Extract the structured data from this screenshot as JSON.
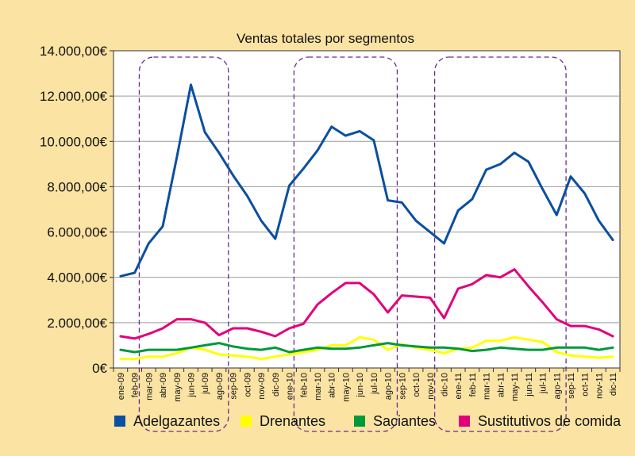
{
  "chart_data": {
    "type": "line",
    "title": "Ventas totales por segmentos",
    "xlabel": "",
    "ylabel": "",
    "ylim": [
      0,
      14000
    ],
    "y_ticks": [
      0,
      2000,
      4000,
      6000,
      8000,
      10000,
      12000,
      14000
    ],
    "y_tick_labels": [
      "0€",
      "2.000,00€",
      "4.000,00€",
      "6.000,00€",
      "8.000,00€",
      "10.000,00€",
      "12.000,00€",
      "14.000,00€"
    ],
    "grid": "horizontal",
    "legend_position": "bottom",
    "categories": [
      "ene-09",
      "feb-09",
      "mar-09",
      "abr-09",
      "may-09",
      "jun-09",
      "jul-09",
      "ago-09",
      "sep-09",
      "oct-09",
      "nov-09",
      "dic-09",
      "ene-10",
      "feb-10",
      "mar-10",
      "abr-10",
      "may-10",
      "jun-10",
      "jul-10",
      "ago-10",
      "sep-10",
      "oct-10",
      "nov-10",
      "dic-10",
      "ene-11",
      "feb-11",
      "mar-11",
      "abr-11",
      "may-11",
      "jun-11",
      "jul-11",
      "ago-11",
      "sep-11",
      "oct-11",
      "nov-11",
      "dic-11"
    ],
    "series": [
      {
        "name": "Adelgazantes",
        "color": "#0a4fa0",
        "values": [
          4050,
          4200,
          5500,
          6250,
          9300,
          12500,
          10400,
          9500,
          8500,
          7600,
          6500,
          5700,
          8050,
          8800,
          9600,
          10650,
          10250,
          10450,
          10050,
          7400,
          7300,
          6500,
          6000,
          5500,
          6950,
          7450,
          8750,
          9000,
          9500,
          9100,
          7900,
          6750,
          8450,
          7700,
          6500,
          5650
        ]
      },
      {
        "name": "Drenantes",
        "color": "#ffff00",
        "values": [
          400,
          400,
          500,
          500,
          650,
          900,
          800,
          600,
          550,
          500,
          400,
          500,
          600,
          700,
          800,
          1000,
          1000,
          1350,
          1250,
          800,
          1050,
          900,
          800,
          650,
          850,
          900,
          1200,
          1200,
          1350,
          1250,
          1150,
          700,
          550,
          500,
          450,
          500
        ]
      },
      {
        "name": "Saciantes",
        "color": "#00983a",
        "values": [
          800,
          700,
          800,
          800,
          800,
          900,
          1000,
          1100,
          950,
          850,
          800,
          900,
          700,
          800,
          900,
          850,
          850,
          900,
          1000,
          1100,
          1000,
          950,
          900,
          900,
          850,
          750,
          800,
          900,
          850,
          800,
          800,
          900,
          900,
          900,
          800,
          900
        ]
      },
      {
        "name": "Sustitutivos de comida",
        "color": "#e2007a",
        "values": [
          1400,
          1300,
          1500,
          1750,
          2150,
          2150,
          2000,
          1450,
          1750,
          1750,
          1600,
          1400,
          1750,
          1950,
          2800,
          3300,
          3750,
          3750,
          3250,
          2450,
          3200,
          3150,
          3100,
          2200,
          3500,
          3700,
          4100,
          4000,
          4350,
          3600,
          2900,
          2150,
          1850,
          1850,
          1700,
          1400
        ]
      }
    ],
    "highlight_groups": [
      [
        "mar-09",
        "ago-09"
      ],
      [
        "feb-10",
        "ago-10"
      ],
      [
        "dic-10",
        "ago-11"
      ]
    ],
    "highlight_style": "dashed purple rounded rectangles"
  }
}
